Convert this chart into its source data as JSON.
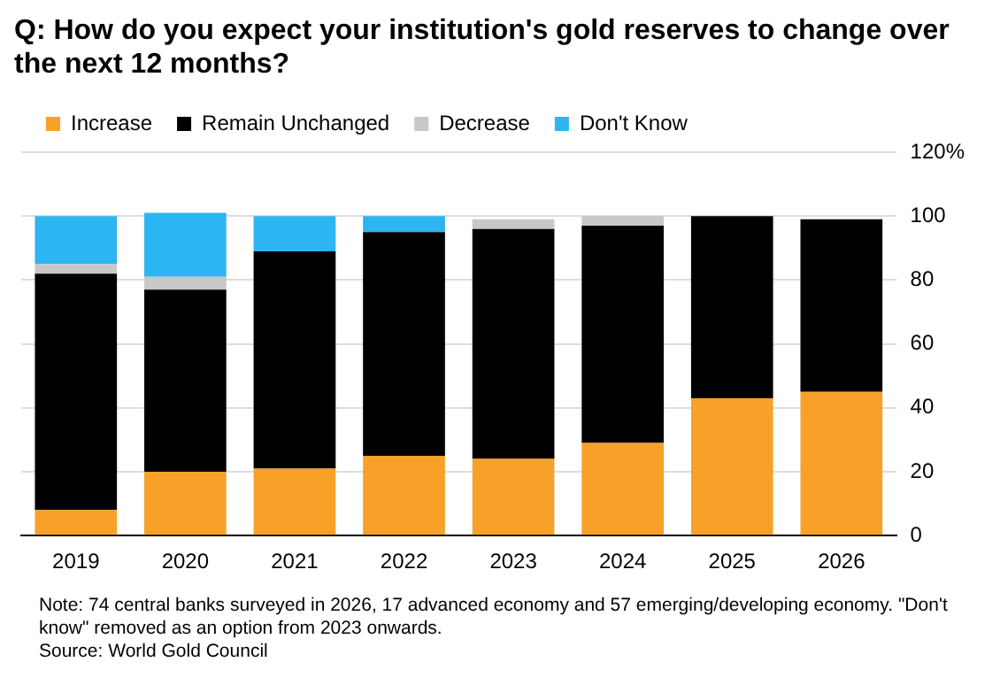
{
  "chart_data": {
    "type": "bar",
    "title": "Q: How do you expect your institution's gold reserves to change over the next 12 months?",
    "categories": [
      "2019",
      "2020",
      "2021",
      "2022",
      "2023",
      "2024",
      "2025",
      "2026"
    ],
    "series": [
      {
        "name": "Increase",
        "color": "#f7a128",
        "values": [
          8,
          20,
          21,
          25,
          24,
          29,
          43,
          45
        ]
      },
      {
        "name": "Remain Unchanged",
        "color": "#000000",
        "values": [
          74,
          57,
          68,
          70,
          72,
          68,
          57,
          54
        ]
      },
      {
        "name": "Decrease",
        "color": "#c8c8c8",
        "values": [
          3,
          4,
          null,
          null,
          3,
          3,
          null,
          null
        ]
      },
      {
        "name": "Don't Know",
        "color": "#2cb5f0",
        "values": [
          15,
          20,
          11,
          5,
          null,
          null,
          null,
          null
        ]
      }
    ],
    "stacked": true,
    "ylim": [
      0,
      120
    ],
    "yticks": [
      0,
      20,
      40,
      60,
      80,
      100,
      {
        "value": 120,
        "label": "120%"
      }
    ],
    "grid": "y",
    "legend": "top left",
    "annotations": [
      "Note: 74 central banks surveyed in 2026, 17 advanced economy and 57 emerging/developing economy. \"Don't know\" removed as an option from 2023 onwards.",
      "Source: World Gold Council"
    ]
  }
}
